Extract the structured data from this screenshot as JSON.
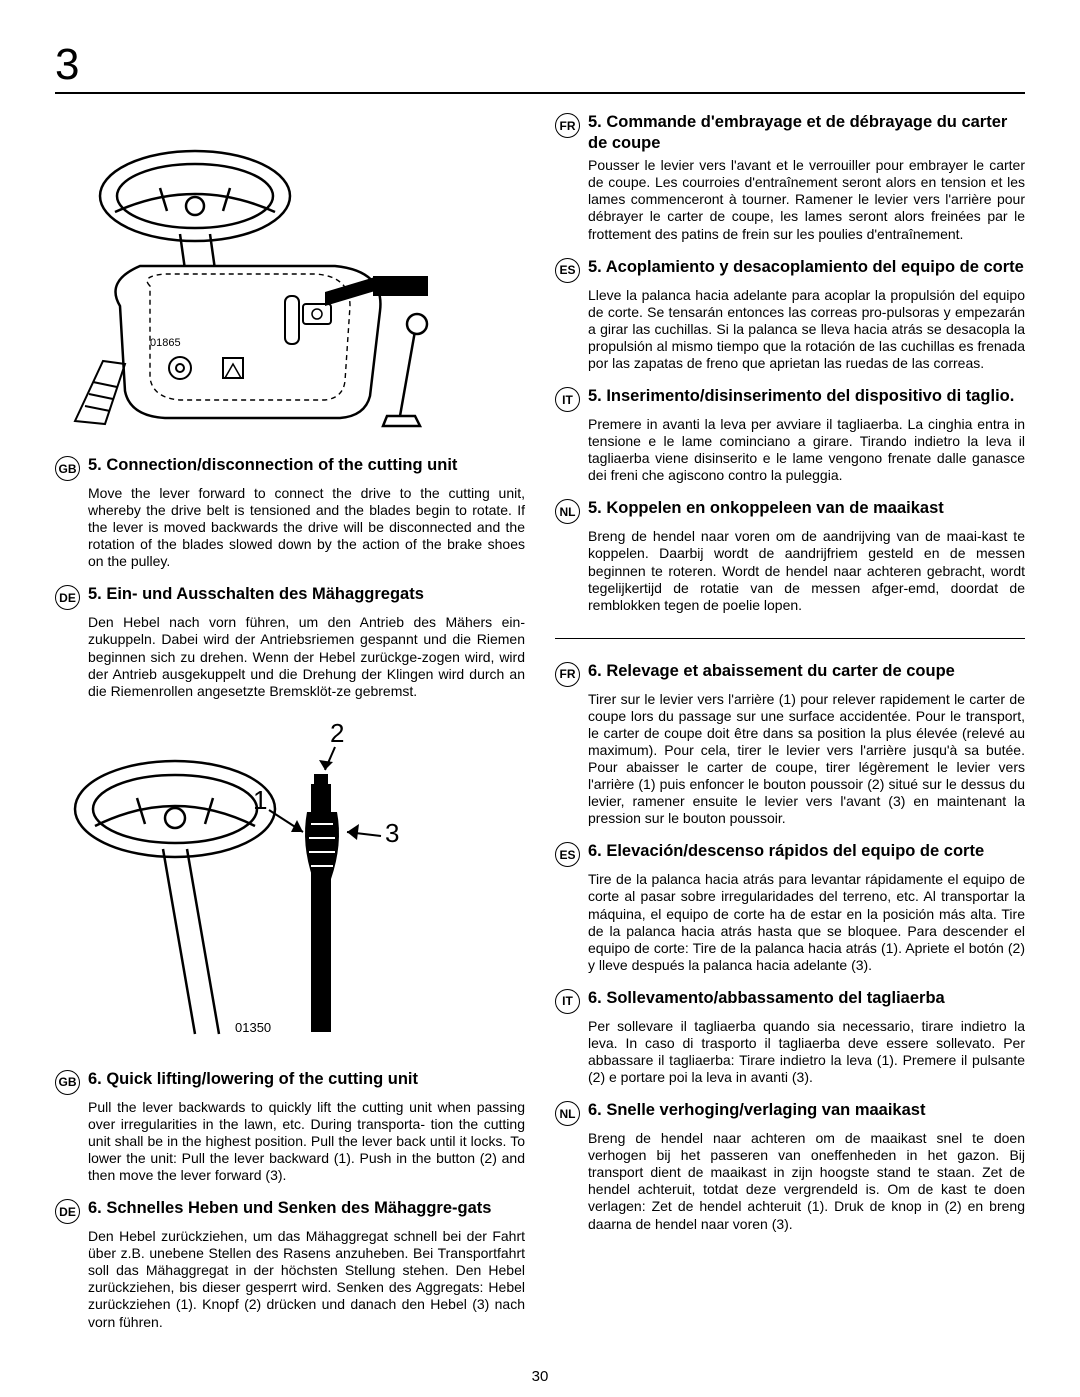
{
  "chapter_number": "3",
  "page_number": "30",
  "figure1": {
    "part_number": "01865"
  },
  "figure2": {
    "part_number": "01350",
    "labels": {
      "l1": "1",
      "l2": "2",
      "l3": "3"
    }
  },
  "left": [
    {
      "lang": "GB",
      "title": "5. Connection/disconnection of the cutting unit",
      "body": "Move the lever forward to connect the drive to the cutting unit, whereby the drive belt is tensioned and the blades begin to rotate. If the lever is moved backwards the drive will be disconnected and the rotation of the blades slowed down by the action of the brake shoes on the pulley."
    },
    {
      "lang": "DE",
      "title": "5. Ein- und Ausschalten des Mähaggregats",
      "body": "Den Hebel nach vorn führen, um den Antrieb des Mähers ein-zukuppeln. Dabei wird der Antriebsriemen gespannt und die Riemen beginnen sich zu drehen. Wenn der Hebel zurückge-zogen wird, wird der Antrieb ausgekuppelt und die Drehung der Klingen wird durch an die Riemenrollen angesetzte Bremsklöt-ze gebremst."
    },
    {
      "lang": "GB",
      "title": "6. Quick lifting/lowering of the cutting unit",
      "body": "Pull the lever backwards to quickly lift the cutting unit when passing over irregularities in the lawn, etc. During transporta-   tion the cutting unit shall be in the highest position. Pull the lever back until it locks. To lower the unit: Pull the lever backward (1). Push in the button (2) and then move the lever forward (3)."
    },
    {
      "lang": "DE",
      "title": "6. Schnelles Heben und Senken des Mähaggre-gats",
      "body": "Den Hebel zurückziehen, um das Mähaggregat schnell bei der Fahrt über z.B. unebene Stellen des Rasens anzuheben. Bei Transportfahrt soll das Mähaggregat in der höchsten Stellung stehen. Den Hebel zurückziehen, bis dieser gesperrt wird. Senken des Aggregats: Hebel zurückziehen (1). Knopf (2) drücken und danach den Hebel (3) nach vorn führen."
    }
  ],
  "right_top": [
    {
      "lang": "FR",
      "title": "5. Commande d'embrayage et de débrayage du carter de coupe",
      "body": "Pousser le levier vers l'avant et le verrouiller pour embrayer le carter de coupe. Les courroies d'entraînement seront alors en tension et les lames commenceront à tourner. Ramener le levier vers l'arrière pour débrayer le carter de coupe, les lames seront alors freinées par le frottement des patins de frein sur les poulies d'entraînement."
    },
    {
      "lang": "ES",
      "title": "5. Acoplamiento y desacoplamiento del equipo de corte",
      "body": "Lleve la palanca hacia adelante para acoplar la propulsión del equipo de corte. Se tensarán entonces las correas pro-pulsoras y empezarán a girar las cuchillas. Si la palanca se lleva hacia atrás se desacopla la propulsión al mismo tiempo que la rotación de las cuchillas es frenada por las zapatas de freno que aprietan las ruedas de las correas."
    },
    {
      "lang": "IT",
      "title": "5. Inserimento/disinserimento del dispositivo di taglio.",
      "body": "Premere in avanti la leva per avviare il tagliaerba. La cinghia entra in tensione e le lame cominciano a girare. Tirando indietro la leva il tagliaerba viene disinserito e le lame vengono frenate dalle ganasce dei freni che agiscono contro la puleggia."
    },
    {
      "lang": "NL",
      "title": "5. Koppelen en onkoppeleen van de maaikast",
      "body": "Breng de hendel naar voren om de aandrijving van de maai-kast te koppelen. Daarbij wordt de aandrijfriem gesteld en de messen beginnen te roteren. Wordt de hendel naar achteren gebracht, wordt tegelijkertijd de rotatie van de messen afger-emd, doordat de remblokken tegen de poelie lopen."
    }
  ],
  "right_bottom": [
    {
      "lang": "FR",
      "title": "6. Relevage et abaissement du carter de coupe",
      "body": "Tirer sur le levier vers l'arrière (1) pour relever rapidement le carter de coupe lors du passage sur une surface accidentée. Pour le transport, le carter de coupe doit être dans sa position la plus élevée (relevé au maximum). Pour cela, tirer le levier vers l'arrière jusqu'à sa butée. Pour abaisser le carter de coupe, tirer légèrement le levier vers l'arrière (1) puis enfoncer le bouton poussoir (2) situé sur le dessus du levier, ramener ensuite le levier vers l'avant (3) en maintenant la pression sur le bouton poussoir."
    },
    {
      "lang": "ES",
      "title": "6. Elevación/descenso rápidos del equipo de corte",
      "body": "Tire de la palanca hacia atrás para levantar rápidamente el equipo de corte al pasar sobre irregularidades del terreno, etc. Al transportar la máquina, el equipo de corte ha de estar en la posición más alta. Tire de la palanca hacia atrás hasta que se bloquee. Para descender el equipo de corte: Tire de la palanca hacia atrás (1). Apriete el botón (2) y lleve después la palanca hacia adelante (3)."
    },
    {
      "lang": "IT",
      "title": "6. Sollevamento/abbassamento del tagliaerba",
      "body": "Per sollevare il tagliaerba quando sia necessario, tirare indietro la leva. In caso di trasporto il tagliaerba deve essere sollevato. Per abbassare il tagliaerba: Tirare indietro la leva (1). Premere il pulsante (2) e portare poi la leva in avanti (3)."
    },
    {
      "lang": "NL",
      "title": "6. Snelle verhoging/verlaging van maaikast",
      "body": "Breng de hendel naar achteren om de maaikast snel te doen verhogen bij het passeren van oneffenheden in het gazon. Bij transport dient de maaikast in zijn hoogste stand te staan. Zet de hendel achteruit, totdat deze vergrendeld is. Om de kast te doen verlagen: Zet de hendel achteruit (1). Druk de knop in (2) en breng daarna de hendel naar voren (3)."
    }
  ]
}
